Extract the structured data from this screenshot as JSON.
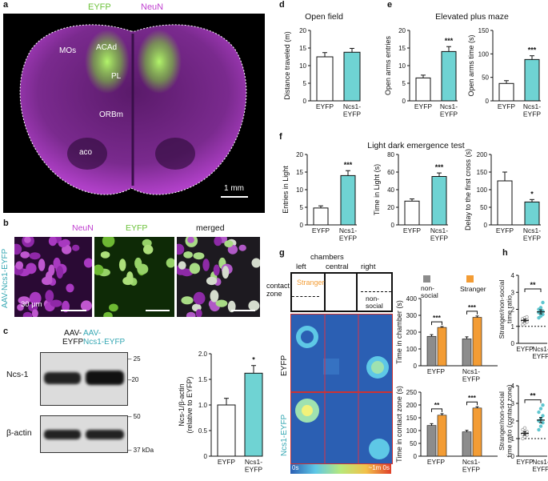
{
  "panels": {
    "a": "a",
    "b": "b",
    "c": "c",
    "d": "d",
    "e": "e",
    "f": "f",
    "g": "g",
    "h": "h"
  },
  "panel_a": {
    "channel_1": "EYFP",
    "channel_2": "NeuN",
    "regions": [
      "MOs",
      "ACAd",
      "PL",
      "ORBm",
      "aco"
    ],
    "scale_bar": "1 mm",
    "colors": {
      "eyfp": "#7fd23c",
      "neun": "#c040d0"
    }
  },
  "panel_b": {
    "row_label": "AAV-Ncs1-EYFP",
    "columns": [
      "NeuN",
      "EYFP",
      "merged"
    ],
    "scale_bar": "30 μm"
  },
  "panel_c": {
    "lanes": [
      "AAV-\nEYFP",
      "AAV-\nNcs1-EYFP"
    ],
    "blot_rows": [
      "Ncs-1",
      "β-actin"
    ],
    "markers": [
      "– 25",
      "–20",
      "– 50",
      "– 37 kDa"
    ],
    "chart_data": {
      "type": "bar",
      "categories": [
        "EYFP",
        "Ncs1-\nEYFP"
      ],
      "values": [
        1.0,
        1.62
      ],
      "errors": [
        0.13,
        0.15
      ],
      "ylabel": "Ncs-1/β-actin\n(relative to EYFP)",
      "ylim": [
        0,
        2.0
      ],
      "yticks": [
        "0",
        "0.5",
        "1.0",
        "1.5",
        "2.0"
      ],
      "significance": "*"
    }
  },
  "panel_d": {
    "title": "Open field",
    "chart_data": {
      "type": "bar",
      "categories": [
        "EYFP",
        "Ncs1-\nEYFP"
      ],
      "values": [
        12.5,
        13.8
      ],
      "errors": [
        1.2,
        1.1
      ],
      "ylabel": "Distance traveled (m)",
      "ylim": [
        0,
        20
      ],
      "yticks": [
        "0",
        "5",
        "10",
        "15",
        "20"
      ],
      "significance": ""
    }
  },
  "panel_e": {
    "title": "Elevated plus maze",
    "chart_data": [
      {
        "type": "bar",
        "categories": [
          "EYFP",
          "Ncs1-\nEYFP"
        ],
        "values": [
          6.5,
          14
        ],
        "errors": [
          0.8,
          1.4
        ],
        "ylabel": "Open arms entries",
        "ylim": [
          0,
          20
        ],
        "yticks": [
          "0",
          "5",
          "10",
          "15",
          "20"
        ],
        "significance": "***"
      },
      {
        "type": "bar",
        "categories": [
          "EYFP",
          "Ncs1-\nEYFP"
        ],
        "values": [
          37,
          88
        ],
        "errors": [
          6,
          8
        ],
        "ylabel": "Open arms time (s)",
        "ylim": [
          0,
          150
        ],
        "yticks": [
          "0",
          "50",
          "100",
          "150"
        ],
        "significance": "***"
      }
    ]
  },
  "panel_f": {
    "title": "Light dark emergence test",
    "chart_data": [
      {
        "type": "bar",
        "categories": [
          "EYFP",
          "Ncs1-\nEYFP"
        ],
        "values": [
          4.8,
          14
        ],
        "errors": [
          0.6,
          1.4
        ],
        "ylabel": "Entries in Light",
        "ylim": [
          0,
          20
        ],
        "yticks": [
          "0",
          "5",
          "10",
          "15",
          "20"
        ],
        "significance": "***"
      },
      {
        "type": "bar",
        "categories": [
          "EYFP",
          "Ncs1-\nEYFP"
        ],
        "values": [
          27,
          55
        ],
        "errors": [
          2.5,
          4
        ],
        "ylabel": "Time in Light (s)",
        "ylim": [
          0,
          80
        ],
        "yticks": [
          "0",
          "20",
          "40",
          "60",
          "80"
        ],
        "significance": "***"
      },
      {
        "type": "bar",
        "categories": [
          "EYFP",
          "Ncs1-\nEYFP"
        ],
        "values": [
          125,
          65
        ],
        "errors": [
          25,
          7
        ],
        "ylabel": "Delay to the first cross (s)",
        "ylim": [
          0,
          200
        ],
        "yticks": [
          "0",
          "50",
          "100",
          "150",
          "200"
        ],
        "significance": "*"
      }
    ]
  },
  "panel_g": {
    "chambers_label": "chambers",
    "chamber_names": [
      "left",
      "central",
      "right"
    ],
    "contact_zone": "contact\nzone",
    "stranger": "Stranger",
    "non_social": "non-\nsocial",
    "row_labels": [
      "EYFP",
      "Ncs1-EYFP"
    ],
    "heat_scale_min": "0s",
    "heat_scale_max": "~1m 0s",
    "legend": [
      "non-\nsocial",
      "Stranger"
    ],
    "colors": {
      "nonsocial": "#8c8c8c",
      "stranger": "#f39c34"
    },
    "chart_data": [
      {
        "type": "bar",
        "categories": [
          "EYFP",
          "Ncs1-\nEYFP"
        ],
        "series": [
          {
            "name": "non-social",
            "values": [
              175,
              160
            ],
            "errors": [
              10,
              12
            ]
          },
          {
            "name": "Stranger",
            "values": [
              228,
              288
            ],
            "errors": [
              5,
              8
            ]
          }
        ],
        "ylabel": "Time in chamber (s)",
        "ylim": [
          0,
          400
        ],
        "yticks": [
          "0",
          "100",
          "200",
          "300",
          "400"
        ],
        "significance": [
          "***",
          "***"
        ]
      },
      {
        "type": "bar",
        "categories": [
          "EYFP",
          "Ncs1-\nEYFP"
        ],
        "series": [
          {
            "name": "non-social",
            "values": [
              120,
              95
            ],
            "errors": [
              7,
              6
            ]
          },
          {
            "name": "Stranger",
            "values": [
              160,
              188
            ],
            "errors": [
              6,
              5
            ]
          }
        ],
        "ylabel": "Time in contact zone (s)",
        "ylim": [
          0,
          250
        ],
        "yticks": [
          "0",
          "50",
          "100",
          "150",
          "200",
          "250"
        ],
        "significance": [
          "**",
          "***"
        ]
      }
    ]
  },
  "panel_h": {
    "chart_data": [
      {
        "type": "scatter",
        "categories": [
          "EYFP",
          "Ncs1-\nEYFP"
        ],
        "means": [
          1.35,
          1.85
        ],
        "errors": [
          0.08,
          0.12
        ],
        "points": [
          [
            1.1,
            1.2,
            1.25,
            1.3,
            1.35,
            1.4,
            1.45,
            1.5,
            1.55
          ],
          [
            1.5,
            1.6,
            1.7,
            1.8,
            1.85,
            1.9,
            2.0,
            2.1,
            2.4
          ]
        ],
        "ylabel": "Stranger/non-social\ntime ratio",
        "ylim": [
          0,
          4
        ],
        "yticks": [
          "0",
          "1",
          "2",
          "3",
          "4"
        ],
        "significance": "**"
      },
      {
        "type": "scatter",
        "categories": [
          "EYFP",
          "Ncs1-\nEYFP"
        ],
        "means": [
          1.3,
          2.05
        ],
        "errors": [
          0.1,
          0.15
        ],
        "points": [
          [
            1.0,
            1.1,
            1.2,
            1.25,
            1.3,
            1.4,
            1.5,
            1.6
          ],
          [
            1.5,
            1.7,
            1.9,
            2.0,
            2.1,
            2.3,
            2.5,
            2.7,
            2.9
          ]
        ],
        "ylabel": "Stranger/non-social\ntime ratio (contact zone)",
        "ylim": [
          0,
          4
        ],
        "yticks": [
          "0",
          "1",
          "2",
          "3",
          "4"
        ],
        "significance": "**"
      }
    ]
  }
}
